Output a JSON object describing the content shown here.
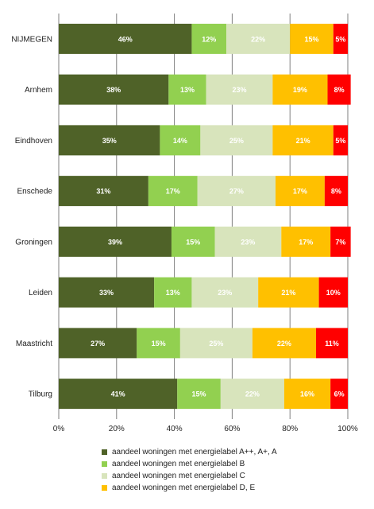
{
  "chart_data": {
    "type": "bar",
    "orientation": "horizontal",
    "stacked": true,
    "categories": [
      "NIJMEGEN",
      "Arnhem",
      "Eindhoven",
      "Enschede",
      "Groningen",
      "Leiden",
      "Maastricht",
      "Tilburg"
    ],
    "series": [
      {
        "name": "aandeel woningen met energielabel A++, A+, A",
        "color": "#4f6228",
        "label_color": "#ffffff",
        "values": [
          46,
          38,
          35,
          31,
          39,
          33,
          27,
          41
        ],
        "labels": [
          "46%",
          "38%",
          "35%",
          "31%",
          "39%",
          "33%",
          "27%",
          "41%"
        ]
      },
      {
        "name": "aandeel woningen met energielabel B",
        "color": "#92d050",
        "label_color": "#ffffff",
        "values": [
          12,
          13,
          14,
          17,
          15,
          13,
          15,
          15
        ],
        "labels": [
          "12%",
          "13%",
          "14%",
          "17%",
          "15%",
          "13%",
          "15%",
          "15%"
        ]
      },
      {
        "name": "aandeel woningen met energielabel C",
        "color": "#d8e4bc",
        "label_color": "#ffffff",
        "values": [
          22,
          23,
          25,
          27,
          23,
          23,
          25,
          22
        ],
        "labels": [
          "22%",
          "23%",
          "25%",
          "27%",
          "23%",
          "23%",
          "25%",
          "22%"
        ]
      },
      {
        "name": "aandeel woningen met energielabel D, E",
        "color": "#ffc000",
        "label_color": "#ffffff",
        "values": [
          15,
          19,
          21,
          17,
          17,
          21,
          22,
          16
        ],
        "labels": [
          "15%",
          "19%",
          "21%",
          "17%",
          "17%",
          "21%",
          "22%",
          "16%"
        ]
      },
      {
        "name": "",
        "color": "#ff0000",
        "label_color": "#ffffff",
        "values": [
          5,
          8,
          5,
          8,
          7,
          10,
          11,
          6
        ],
        "labels": [
          "5%",
          "8%",
          "5%",
          "8%",
          "7%",
          "10%",
          "11%",
          "6%"
        ]
      }
    ],
    "xlim": [
      0,
      100
    ],
    "x_ticks": [
      0,
      20,
      40,
      60,
      80,
      100
    ],
    "x_tick_labels": [
      "0%",
      "20%",
      "40%",
      "60%",
      "80%",
      "100%"
    ],
    "grid": true,
    "legend_position": "bottom",
    "legend_entries": [
      "aandeel woningen met energielabel A++, A+, A",
      "aandeel woningen met energielabel B",
      "aandeel woningen met energielabel C",
      "aandeel woningen met energielabel D, E"
    ]
  }
}
